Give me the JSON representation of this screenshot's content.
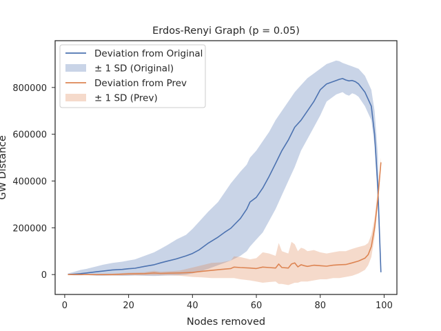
{
  "chart_data": {
    "type": "line",
    "title": "Erdos-Renyi Graph (p = 0.05)",
    "xlabel": "Nodes removed",
    "ylabel": "GW Distance",
    "xlim": [
      -3,
      104
    ],
    "ylim": [
      -85000,
      1000000
    ],
    "xticks": [
      0,
      20,
      40,
      60,
      80,
      100
    ],
    "yticks": [
      0,
      200000,
      400000,
      600000,
      800000
    ],
    "grid": false,
    "legend_position": "top-left",
    "legend": [
      {
        "label": "Deviation from Original",
        "kind": "line",
        "color": "#4c72b0"
      },
      {
        "label": "± 1 SD (Original)",
        "kind": "band",
        "color": "#4c72b0"
      },
      {
        "label": "Deviation from Prev",
        "kind": "line",
        "color": "#dd8452"
      },
      {
        "label": "± 1 SD (Prev)",
        "kind": "band",
        "color": "#dd8452"
      }
    ],
    "series": [
      {
        "name": "Deviation from Original",
        "color": "#4c72b0",
        "x": [
          1,
          3,
          5,
          7,
          10,
          12,
          15,
          18,
          20,
          22,
          25,
          28,
          30,
          32,
          35,
          38,
          40,
          42,
          45,
          48,
          50,
          52,
          55,
          57,
          58,
          60,
          62,
          64,
          66,
          68,
          70,
          72,
          74,
          76,
          78,
          80,
          82,
          84,
          85,
          86,
          87,
          88,
          89,
          90,
          91,
          92,
          94,
          96,
          97,
          98,
          99
        ],
        "y": [
          0,
          2000,
          4000,
          7000,
          12000,
          15000,
          20000,
          22000,
          25000,
          27000,
          35000,
          42000,
          50000,
          57000,
          67000,
          80000,
          90000,
          105000,
          135000,
          160000,
          180000,
          198000,
          240000,
          280000,
          310000,
          330000,
          370000,
          420000,
          475000,
          530000,
          575000,
          630000,
          660000,
          700000,
          740000,
          790000,
          815000,
          825000,
          830000,
          835000,
          838000,
          832000,
          828000,
          830000,
          825000,
          815000,
          780000,
          720000,
          600000,
          380000,
          10000
        ]
      },
      {
        "name": "Deviation from Prev",
        "color": "#dd8452",
        "x": [
          1,
          5,
          10,
          15,
          20,
          25,
          28,
          30,
          33,
          36,
          40,
          43,
          46,
          49,
          52,
          53,
          55,
          58,
          60,
          62,
          64,
          66,
          67,
          68,
          70,
          71,
          72,
          73,
          74,
          75,
          76,
          78,
          80,
          82,
          84,
          86,
          88,
          90,
          92,
          94,
          95,
          96,
          97,
          98,
          99
        ],
        "y": [
          0,
          0,
          0,
          0,
          3000,
          4000,
          7000,
          5000,
          6000,
          7000,
          9000,
          14000,
          18000,
          22000,
          26000,
          32000,
          30000,
          28000,
          26000,
          32000,
          30000,
          28000,
          45000,
          30000,
          28000,
          45000,
          50000,
          33000,
          42000,
          38000,
          35000,
          40000,
          38000,
          36000,
          40000,
          42000,
          43000,
          50000,
          58000,
          70000,
          85000,
          120000,
          200000,
          320000,
          480000
        ]
      }
    ],
    "bands": [
      {
        "name": "± 1 SD (Original)",
        "color": "#4c72b0",
        "x": [
          1,
          3,
          5,
          7,
          10,
          12,
          15,
          18,
          20,
          22,
          25,
          28,
          30,
          32,
          35,
          38,
          40,
          42,
          45,
          48,
          50,
          52,
          55,
          57,
          58,
          60,
          62,
          64,
          66,
          68,
          70,
          72,
          74,
          76,
          78,
          80,
          82,
          84,
          85,
          86,
          87,
          88,
          89,
          90,
          91,
          92,
          94,
          96,
          97,
          98,
          99
        ],
        "upper": [
          5000,
          12000,
          20000,
          25000,
          35000,
          42000,
          50000,
          55000,
          60000,
          65000,
          80000,
          95000,
          110000,
          125000,
          150000,
          170000,
          195000,
          225000,
          270000,
          310000,
          350000,
          390000,
          440000,
          470000,
          500000,
          530000,
          570000,
          610000,
          660000,
          700000,
          740000,
          780000,
          810000,
          840000,
          860000,
          880000,
          900000,
          910000,
          915000,
          912000,
          905000,
          900000,
          895000,
          890000,
          885000,
          880000,
          850000,
          790000,
          700000,
          520000,
          10000
        ],
        "lower": [
          -2000,
          -3000,
          -3000,
          -2000,
          -5000,
          -5000,
          -4000,
          -5000,
          -5000,
          -4000,
          -5000,
          -6000,
          -5000,
          -4000,
          -3000,
          0,
          5000,
          12000,
          25000,
          40000,
          50000,
          60000,
          80000,
          100000,
          120000,
          150000,
          180000,
          230000,
          280000,
          340000,
          400000,
          460000,
          530000,
          580000,
          630000,
          680000,
          740000,
          760000,
          770000,
          775000,
          780000,
          770000,
          765000,
          775000,
          770000,
          760000,
          720000,
          660000,
          550000,
          320000,
          10000
        ]
      },
      {
        "name": "± 1 SD (Prev)",
        "color": "#dd8452",
        "x": [
          1,
          5,
          10,
          15,
          20,
          25,
          28,
          30,
          33,
          36,
          40,
          43,
          46,
          49,
          52,
          53,
          55,
          58,
          60,
          62,
          64,
          66,
          67,
          68,
          70,
          71,
          72,
          73,
          74,
          75,
          76,
          78,
          80,
          82,
          84,
          86,
          88,
          90,
          92,
          94,
          95,
          96,
          97,
          98,
          99
        ],
        "upper": [
          1000,
          2000,
          3000,
          4000,
          8000,
          10000,
          16000,
          12000,
          14000,
          17000,
          30000,
          40000,
          50000,
          52000,
          60000,
          78000,
          75000,
          65000,
          70000,
          95000,
          90000,
          80000,
          135000,
          100000,
          90000,
          140000,
          130000,
          100000,
          115000,
          110000,
          100000,
          105000,
          95000,
          90000,
          95000,
          100000,
          100000,
          110000,
          118000,
          125000,
          135000,
          170000,
          240000,
          360000,
          500000
        ],
        "lower": [
          -1000,
          -2000,
          -3000,
          -4000,
          -3000,
          -3000,
          -3000,
          -3000,
          -3000,
          -5000,
          -10000,
          -12000,
          -15000,
          -15000,
          -15000,
          -15000,
          -20000,
          -25000,
          -30000,
          -35000,
          -32000,
          -30000,
          -40000,
          -40000,
          -45000,
          -40000,
          -35000,
          -35000,
          -30000,
          -30000,
          -30000,
          -25000,
          -20000,
          -20000,
          -15000,
          -15000,
          -10000,
          -5000,
          5000,
          20000,
          40000,
          75000,
          160000,
          290000,
          460000
        ]
      }
    ]
  }
}
